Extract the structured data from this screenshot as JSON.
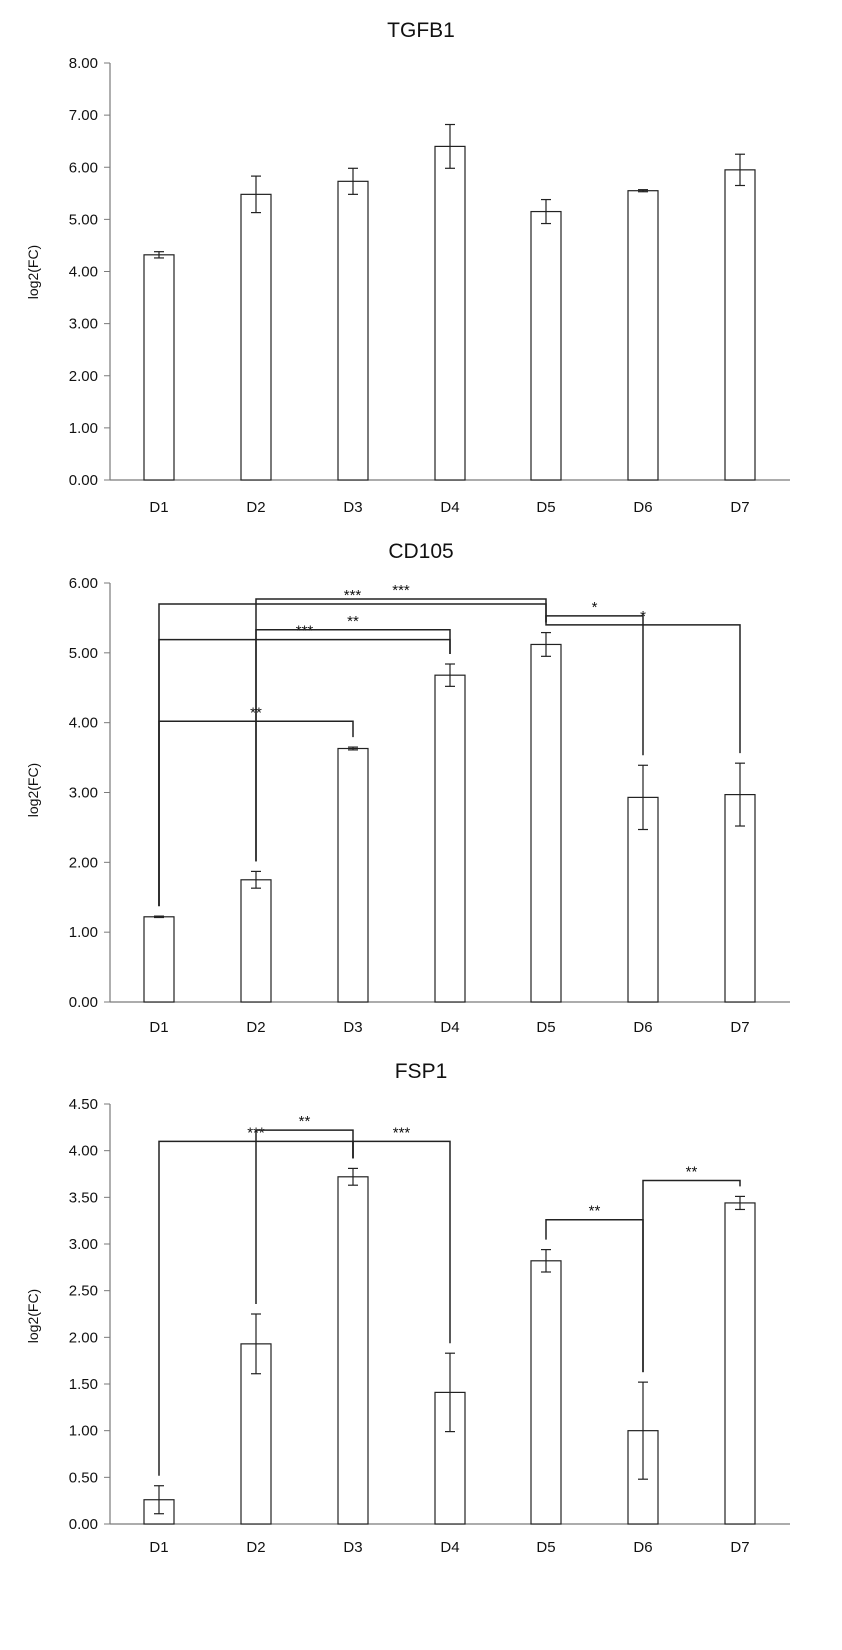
{
  "chart_data": [
    {
      "type": "bar",
      "title": "TGFB1",
      "ylabel": "log2(FC)",
      "ylim": [
        0,
        8
      ],
      "yticks": [
        "0.00",
        "1.00",
        "2.00",
        "3.00",
        "4.00",
        "5.00",
        "6.00",
        "7.00",
        "8.00"
      ],
      "categories": [
        "D1",
        "D2",
        "D3",
        "D4",
        "D5",
        "D6",
        "D7"
      ],
      "values": [
        4.32,
        5.48,
        5.73,
        6.4,
        5.15,
        5.55,
        5.95
      ],
      "errors": [
        0.06,
        0.35,
        0.25,
        0.42,
        0.23,
        0.02,
        0.3
      ],
      "significance": []
    },
    {
      "type": "bar",
      "title": "CD105",
      "ylabel": "log2(FC)",
      "ylim": [
        0,
        6
      ],
      "yticks": [
        "0.00",
        "1.00",
        "2.00",
        "3.00",
        "4.00",
        "5.00",
        "6.00"
      ],
      "categories": [
        "D1",
        "D2",
        "D3",
        "D4",
        "D5",
        "D6",
        "D7"
      ],
      "values": [
        1.22,
        1.75,
        3.63,
        4.68,
        5.12,
        2.93,
        2.97
      ],
      "errors": [
        0.01,
        0.12,
        0.02,
        0.16,
        0.17,
        0.46,
        0.45
      ],
      "significance": [
        {
          "from": 0,
          "to": 4,
          "label": "***",
          "level": 5.7
        },
        {
          "from": 1,
          "to": 4,
          "label": "***",
          "level": 5.77
        },
        {
          "from": 4,
          "to": 5,
          "label": "*",
          "level": 5.53
        },
        {
          "from": 4,
          "to": 6,
          "label": "*",
          "level": 5.4
        },
        {
          "from": 0,
          "to": 3,
          "label": "***",
          "level": 5.19
        },
        {
          "from": 1,
          "to": 3,
          "label": "**",
          "level": 5.33
        },
        {
          "from": 0,
          "to": 2,
          "label": "**",
          "level": 4.02
        }
      ]
    },
    {
      "type": "bar",
      "title": "FSP1",
      "ylabel": "log2(FC)",
      "ylim": [
        0,
        4.5
      ],
      "yticks": [
        "0.00",
        "0.50",
        "1.00",
        "1.50",
        "2.00",
        "2.50",
        "3.00",
        "3.50",
        "4.00",
        "4.50"
      ],
      "categories": [
        "D1",
        "D2",
        "D3",
        "D4",
        "D5",
        "D6",
        "D7"
      ],
      "values": [
        0.26,
        1.93,
        3.72,
        1.41,
        2.82,
        1.0,
        3.44
      ],
      "errors": [
        0.15,
        0.32,
        0.09,
        0.42,
        0.12,
        0.52,
        0.07
      ],
      "significance": [
        {
          "from": 0,
          "to": 2,
          "label": "***",
          "level": 4.1
        },
        {
          "from": 1,
          "to": 2,
          "label": "**",
          "level": 4.22
        },
        {
          "from": 2,
          "to": 3,
          "label": "***",
          "level": 4.1
        },
        {
          "from": 4,
          "to": 5,
          "label": "**",
          "level": 3.26
        },
        {
          "from": 5,
          "to": 6,
          "label": "**",
          "level": 3.68
        }
      ]
    }
  ]
}
